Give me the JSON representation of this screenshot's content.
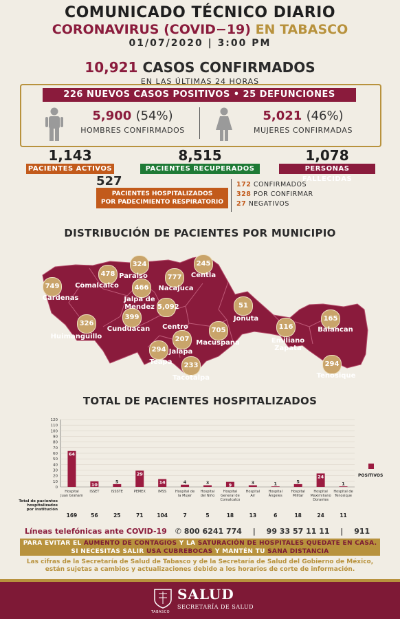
{
  "header": {
    "title": "COMUNICADO TÉCNICO DIARIO",
    "subtitle_main": "CORONAVIRUS (COVID−19)",
    "subtitle_region": "EN TABASCO",
    "date_time": "01/07/2020 | 3:00 PM"
  },
  "summary": {
    "confirmed_num": "10,921",
    "confirmed_label": "CASOS CONFIRMADOS",
    "last24": "EN LAS ÚLTIMAS 24 HORAS",
    "new_cases_bar": "226 NUEVOS CASOS POSITIVOS • 25 DEFUNCIONES",
    "men_num": "5,900",
    "men_pct": "(54%)",
    "men_label": "HOMBRES CONFIRMADOS",
    "women_num": "5,021",
    "women_pct": "(46%)",
    "women_label": "MUJERES CONFIRMADAS"
  },
  "kpis": {
    "active_num": "1,143",
    "active_label": "PACIENTES ACTIVOS",
    "recovered_num": "8,515",
    "recovered_label": "PACIENTES RECUPERADOS",
    "deaths_num": "1,078",
    "deaths_label": "PERSONAS FALLECIDAS",
    "hosp_num": "527",
    "hosp_label_1": "PACIENTES HOSPITALIZADOS",
    "hosp_label_2": "POR PADECIMIENTO RESPIRATORIO",
    "resp_confirmed_num": "172",
    "resp_confirmed_label": "CONFIRMADOS",
    "resp_pending_num": "328",
    "resp_pending_label": "POR CONFIRMAR",
    "resp_negative_num": "27",
    "resp_negative_label": "NEGATIVOS"
  },
  "colors": {
    "wine": "#8a1b3c",
    "gold": "#b8923d",
    "orange": "#c25a1b",
    "green": "#1e7a35",
    "bar": "#9b1b40"
  },
  "map": {
    "title": "DISTRIBUCIÓN DE PACIENTES POR MUNICIPIO",
    "municipios": [
      {
        "name": "Cardenas",
        "value": "749"
      },
      {
        "name": "Comalcalco",
        "value": "478"
      },
      {
        "name": "Paraiso",
        "value": "324"
      },
      {
        "name": "Jalpa de Mendez",
        "value": "466"
      },
      {
        "name": "Nacajuca",
        "value": "777"
      },
      {
        "name": "Centla",
        "value": "245"
      },
      {
        "name": "Huimanguillo",
        "value": "326"
      },
      {
        "name": "Cunduacan",
        "value": "399"
      },
      {
        "name": "Centro",
        "value": "5,092"
      },
      {
        "name": "Jonuta",
        "value": "51"
      },
      {
        "name": "Macuspana",
        "value": "705"
      },
      {
        "name": "Jalapa",
        "value": "207"
      },
      {
        "name": "Teapa",
        "value": "294"
      },
      {
        "name": "Tacotalpa",
        "value": "233"
      },
      {
        "name": "Emiliano Zapata",
        "value": "116"
      },
      {
        "name": "Balancan",
        "value": "165"
      },
      {
        "name": "Tenosique",
        "value": "294"
      }
    ]
  },
  "chart_data": {
    "type": "bar",
    "title": "TOTAL DE PACIENTES HOSPITALIZADOS",
    "ylim": [
      0,
      120
    ],
    "yticks": [
      "0",
      "10",
      "20",
      "30",
      "40",
      "50",
      "60",
      "70",
      "80",
      "90",
      "100",
      "110",
      "120"
    ],
    "categories": [
      "Hospital Juan Graham",
      "ISSET",
      "ISSSTE",
      "PEMEX",
      "IMSS",
      "Hospital de la Mujer",
      "Hospital del Niño",
      "Hospital General de Comalcalco",
      "Hospital Air",
      "Hospital Ángeles",
      "Hospital Militar",
      "Hospital Maximiliano Dorantes",
      "Hospital de Tenosique"
    ],
    "series": [
      {
        "name": "POSITIVOS",
        "values": [
          64,
          10,
          5,
          29,
          14,
          4,
          3,
          9,
          3,
          1,
          5,
          24,
          1
        ]
      }
    ],
    "totals_label": "Total de pacientes hospitalizados por institución",
    "totals": [
      "169",
      "56",
      "25",
      "71",
      "104",
      "7",
      "5",
      "18",
      "13",
      "6",
      "18",
      "24",
      "11"
    ]
  },
  "contact": {
    "label": "Líneas telefónicas ante COVID-19",
    "phone1": "800 6241 774",
    "phone2": "99 33 57 11 11",
    "phone3": "911",
    "sep": "|"
  },
  "advice": {
    "l1a": "PARA EVITAR EL ",
    "l1b": "AUMENTO DE CONTAGIOS",
    "l1c": " Y LA ",
    "l1d": "SATURACIÓN DE HOSPITALES QUEDATE EN CASA.",
    "l2a": "SI NECESITAS SALIR ",
    "l2b": "USA CUBREBOCAS",
    "l2c": " Y MANTÉN TU ",
    "l2d": "SANA DISTANCIA"
  },
  "disclaimer": {
    "line1": "Las cifras de la Secretaría de Salud de Tabasco y de la Secretaría de Salud del Gobierno de México,",
    "line2": "están sujetas a cambios y actualizaciones debido a los horarios de corte de información."
  },
  "footer": {
    "brand": "SALUD",
    "sub": "SECRETARÍA DE SALUD",
    "state": "TABASCO"
  }
}
